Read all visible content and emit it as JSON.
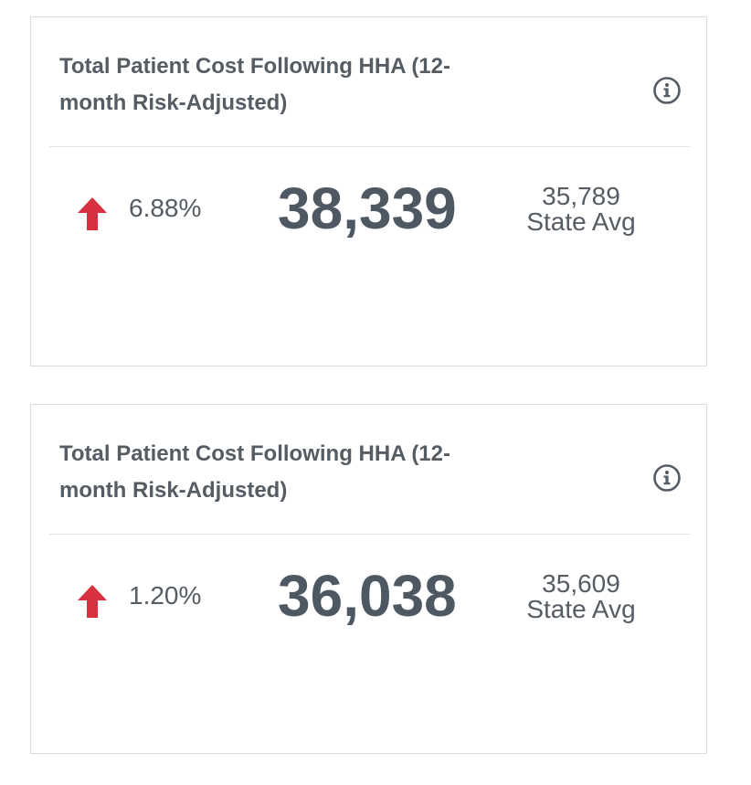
{
  "cards": [
    {
      "title": "Total Patient Cost Following HHA (12-month Risk-Adjusted)",
      "change_pct": "6.88%",
      "trend": "up",
      "value": "38,339",
      "state_avg_value": "35,789",
      "state_avg_label": "State Avg",
      "info_icon": "info-circle-icon"
    },
    {
      "title": "Total Patient Cost Following HHA (12-month Risk-Adjusted)",
      "change_pct": "1.20%",
      "trend": "up",
      "value": "36,038",
      "state_avg_value": "35,609",
      "state_avg_label": "State Avg",
      "info_icon": "info-circle-icon"
    }
  ],
  "colors": {
    "trend_up": "#d7303f",
    "text": "#555c63",
    "value": "#4e5862",
    "border": "#dcdcdc"
  }
}
